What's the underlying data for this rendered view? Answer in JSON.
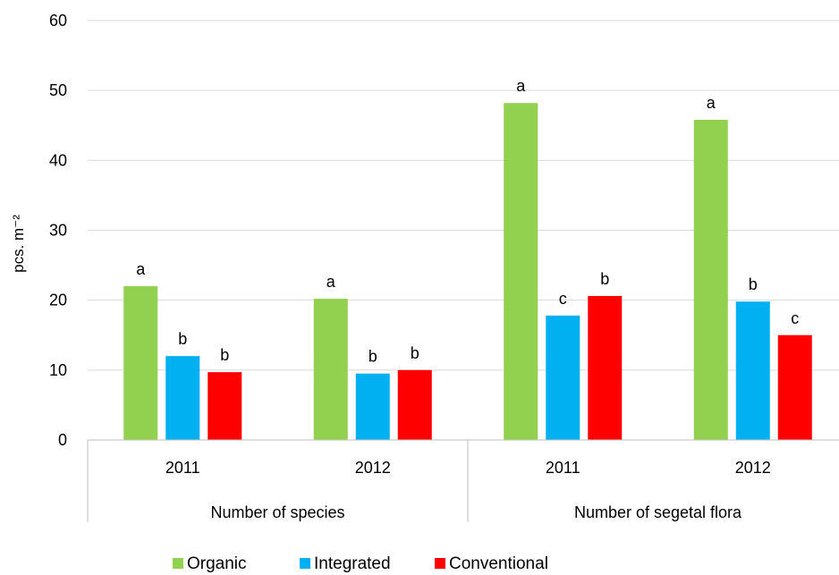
{
  "chart_data": {
    "type": "bar",
    "ylabel": "pcs. m⁻²",
    "ylim": [
      0,
      60
    ],
    "yticks": [
      "0",
      "10",
      "20",
      "30",
      "40",
      "50",
      "60"
    ],
    "grid": true,
    "legend_position": "bottom",
    "groups": [
      {
        "label": "Number of species",
        "categories": [
          "2011",
          "2012"
        ]
      },
      {
        "label": "Number of segetal flora",
        "categories": [
          "2011",
          "2012"
        ]
      }
    ],
    "series": [
      {
        "name": "Organic",
        "color": "#92D050",
        "values": [
          22.0,
          20.2,
          48.2,
          45.8
        ],
        "letters": [
          "a",
          "a",
          "a",
          "a"
        ]
      },
      {
        "name": "Integrated",
        "color": "#00B0F0",
        "values": [
          12.0,
          9.5,
          17.8,
          19.8
        ],
        "letters": [
          "b",
          "b",
          "c",
          "b"
        ]
      },
      {
        "name": "Conventional",
        "color": "#FF0000",
        "values": [
          9.7,
          10.0,
          20.6,
          15.0
        ],
        "letters": [
          "b",
          "b",
          "b",
          "c"
        ]
      }
    ]
  }
}
